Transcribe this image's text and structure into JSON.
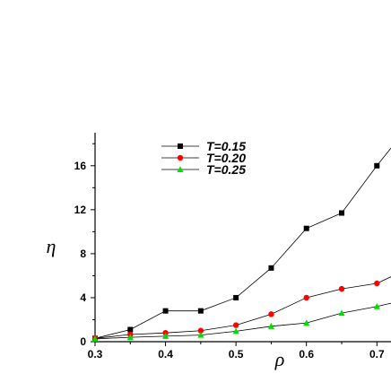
{
  "chart_data": {
    "type": "line",
    "xlabel": "ρ",
    "ylabel": "η",
    "xlim": [
      0.3,
      0.72
    ],
    "ylim": [
      0,
      19
    ],
    "x_ticks": [
      0.3,
      0.4,
      0.5,
      0.6,
      0.7
    ],
    "x_tick_labels": [
      "0.3",
      "0.4",
      "0.5",
      "0.6",
      "0.7"
    ],
    "y_ticks": [
      0,
      4,
      8,
      12,
      16
    ],
    "y_tick_labels": [
      "0",
      "4",
      "8",
      "12",
      "16"
    ],
    "legend_position": "top-center",
    "grid": false,
    "series": [
      {
        "name": "T=0.15",
        "color": "#000000",
        "marker": "square",
        "x": [
          0.3,
          0.35,
          0.4,
          0.45,
          0.5,
          0.55,
          0.6,
          0.65,
          0.7
        ],
        "y": [
          0.3,
          1.1,
          2.8,
          2.8,
          4.0,
          6.7,
          10.3,
          11.7,
          16.0
        ],
        "extend_to": [
          0.72,
          17.6
        ]
      },
      {
        "name": "T=0.20",
        "color": "#ff0000",
        "marker": "circle",
        "x": [
          0.3,
          0.35,
          0.4,
          0.45,
          0.5,
          0.55,
          0.6,
          0.65,
          0.7
        ],
        "y": [
          0.3,
          0.65,
          0.8,
          1.0,
          1.5,
          2.5,
          4.0,
          4.8,
          5.3
        ],
        "extend_to": [
          0.72,
          5.9
        ]
      },
      {
        "name": "T=0.25",
        "color": "#00dd00",
        "marker": "triangle",
        "x": [
          0.3,
          0.35,
          0.4,
          0.45,
          0.5,
          0.55,
          0.6,
          0.65,
          0.7
        ],
        "y": [
          0.25,
          0.4,
          0.5,
          0.6,
          0.95,
          1.4,
          1.7,
          2.6,
          3.2
        ],
        "extend_to": [
          0.72,
          3.5
        ]
      }
    ]
  }
}
